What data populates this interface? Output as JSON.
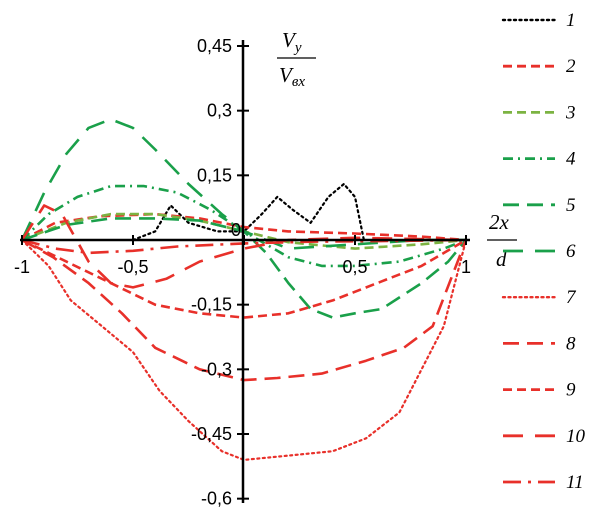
{
  "chart_data": {
    "type": "line",
    "title": "",
    "xlabel": {
      "numerator": "2x",
      "denominator": "d"
    },
    "ylabel": {
      "numerator_main": "V",
      "numerator_sub": "y",
      "denominator_main": "V",
      "denominator_sub": "вх"
    },
    "xlim": [
      -1,
      1
    ],
    "ylim": [
      -0.6,
      0.45
    ],
    "x_ticks": [
      {
        "value": -1,
        "label": "-1"
      },
      {
        "value": -0.5,
        "label": "-0,5"
      },
      {
        "value": 0,
        "label": "0"
      },
      {
        "value": 0.5,
        "label": "0,5"
      },
      {
        "value": 1,
        "label": "1"
      }
    ],
    "y_ticks": [
      {
        "value": 0.45,
        "label": "0,45"
      },
      {
        "value": 0.3,
        "label": "0,3"
      },
      {
        "value": 0.15,
        "label": "0,15"
      },
      {
        "value": -0.15,
        "label": "-0,15"
      },
      {
        "value": -0.3,
        "label": "-0,3"
      },
      {
        "value": -0.45,
        "label": "-0,45"
      },
      {
        "value": -0.6,
        "label": "-0,6"
      }
    ],
    "grid": false,
    "legend_position": "right",
    "series": [
      {
        "name": "1",
        "color": "#000000",
        "dash": "dot",
        "points": [
          [
            -0.5,
            0
          ],
          [
            -0.4,
            0.02
          ],
          [
            -0.33,
            0.08
          ],
          [
            -0.25,
            0.04
          ],
          [
            -0.12,
            0.02
          ],
          [
            0,
            0.02
          ],
          [
            0.08,
            0.06
          ],
          [
            0.15,
            0.1
          ],
          [
            0.22,
            0.07
          ],
          [
            0.3,
            0.04
          ],
          [
            0.38,
            0.1
          ],
          [
            0.45,
            0.13
          ],
          [
            0.5,
            0.1
          ],
          [
            0.54,
            0
          ]
        ]
      },
      {
        "name": "2",
        "color": "#e8302a",
        "dash": "dash",
        "points": [
          [
            -1,
            0
          ],
          [
            -0.85,
            0.04
          ],
          [
            -0.65,
            0.055
          ],
          [
            -0.4,
            0.06
          ],
          [
            -0.2,
            0.05
          ],
          [
            0,
            0.03
          ],
          [
            0.2,
            0.02
          ],
          [
            0.5,
            0.015
          ],
          [
            0.8,
            0.008
          ],
          [
            1,
            0
          ]
        ]
      },
      {
        "name": "3",
        "color": "#7cb342",
        "dash": "dash",
        "points": [
          [
            -1,
            0
          ],
          [
            -0.8,
            0.04
          ],
          [
            -0.6,
            0.06
          ],
          [
            -0.4,
            0.06
          ],
          [
            -0.2,
            0.045
          ],
          [
            0,
            0.02
          ],
          [
            0.2,
            -0.005
          ],
          [
            0.5,
            -0.02
          ],
          [
            0.8,
            -0.01
          ],
          [
            1,
            0
          ]
        ]
      },
      {
        "name": "4",
        "color": "#1aa04a",
        "dash": "dashdot",
        "points": [
          [
            -1,
            0
          ],
          [
            -0.88,
            0.06
          ],
          [
            -0.75,
            0.1
          ],
          [
            -0.6,
            0.125
          ],
          [
            -0.45,
            0.125
          ],
          [
            -0.3,
            0.11
          ],
          [
            -0.15,
            0.07
          ],
          [
            0,
            0.02
          ],
          [
            0.2,
            -0.04
          ],
          [
            0.35,
            -0.06
          ],
          [
            0.5,
            -0.06
          ],
          [
            0.7,
            -0.05
          ],
          [
            0.9,
            -0.02
          ],
          [
            1,
            0
          ]
        ]
      },
      {
        "name": "5",
        "color": "#1aa04a",
        "dash": "longdash",
        "points": [
          [
            -1,
            0
          ],
          [
            -0.8,
            0.035
          ],
          [
            -0.6,
            0.05
          ],
          [
            -0.4,
            0.05
          ],
          [
            -0.2,
            0.045
          ],
          [
            0,
            0.02
          ],
          [
            0.1,
            -0.03
          ],
          [
            0.2,
            -0.1
          ],
          [
            0.3,
            -0.16
          ],
          [
            0.4,
            -0.18
          ],
          [
            0.5,
            -0.17
          ],
          [
            0.62,
            -0.16
          ],
          [
            0.8,
            -0.1
          ],
          [
            0.92,
            -0.05
          ],
          [
            1,
            0
          ]
        ]
      },
      {
        "name": "6",
        "color": "#1aa04a",
        "dash": "longdashsep",
        "points": [
          [
            -1,
            0
          ],
          [
            -0.9,
            0.11
          ],
          [
            -0.8,
            0.2
          ],
          [
            -0.7,
            0.26
          ],
          [
            -0.6,
            0.28
          ],
          [
            -0.5,
            0.26
          ],
          [
            -0.4,
            0.21
          ],
          [
            -0.25,
            0.13
          ],
          [
            -0.1,
            0.06
          ],
          [
            0,
            0.02
          ],
          [
            0.2,
            -0.02
          ],
          [
            0.5,
            -0.01
          ],
          [
            0.8,
            0
          ],
          [
            1,
            0
          ]
        ]
      },
      {
        "name": "7",
        "color": "#e8302a",
        "dash": "dot",
        "points": [
          [
            -1,
            0
          ],
          [
            -0.88,
            -0.06
          ],
          [
            -0.78,
            -0.14
          ],
          [
            -0.64,
            -0.2
          ],
          [
            -0.5,
            -0.26
          ],
          [
            -0.38,
            -0.35
          ],
          [
            -0.25,
            -0.42
          ],
          [
            -0.1,
            -0.49
          ],
          [
            0,
            -0.51
          ],
          [
            0.2,
            -0.5
          ],
          [
            0.4,
            -0.49
          ],
          [
            0.55,
            -0.46
          ],
          [
            0.7,
            -0.4
          ],
          [
            0.8,
            -0.3
          ],
          [
            0.9,
            -0.2
          ],
          [
            1,
            0
          ]
        ]
      },
      {
        "name": "8",
        "color": "#e8302a",
        "dash": "longdash",
        "points": [
          [
            -1,
            0
          ],
          [
            -0.86,
            -0.04
          ],
          [
            -0.7,
            -0.1
          ],
          [
            -0.55,
            -0.17
          ],
          [
            -0.4,
            -0.25
          ],
          [
            -0.2,
            -0.3
          ],
          [
            0,
            -0.325
          ],
          [
            0.15,
            -0.32
          ],
          [
            0.35,
            -0.31
          ],
          [
            0.55,
            -0.28
          ],
          [
            0.72,
            -0.25
          ],
          [
            0.85,
            -0.2
          ],
          [
            1,
            0
          ]
        ]
      },
      {
        "name": "9",
        "color": "#e8302a",
        "dash": "dash",
        "points": [
          [
            -1,
            0
          ],
          [
            -0.8,
            -0.05
          ],
          [
            -0.6,
            -0.1
          ],
          [
            -0.4,
            -0.15
          ],
          [
            -0.2,
            -0.17
          ],
          [
            0,
            -0.18
          ],
          [
            0.2,
            -0.17
          ],
          [
            0.4,
            -0.14
          ],
          [
            0.6,
            -0.1
          ],
          [
            0.8,
            -0.06
          ],
          [
            1,
            0
          ]
        ]
      },
      {
        "name": "10",
        "color": "#e8302a",
        "dash": "longdashsep",
        "points": [
          [
            -1,
            0
          ],
          [
            -0.9,
            0.08
          ],
          [
            -0.82,
            0.06
          ],
          [
            -0.7,
            -0.05
          ],
          [
            -0.6,
            -0.1
          ],
          [
            -0.5,
            -0.11
          ],
          [
            -0.35,
            -0.09
          ],
          [
            -0.2,
            -0.05
          ],
          [
            0,
            -0.02
          ],
          [
            0.2,
            0
          ],
          [
            0.5,
            0.005
          ],
          [
            1,
            0
          ]
        ]
      },
      {
        "name": "11",
        "color": "#e8302a",
        "dash": "longdashdot",
        "points": [
          [
            -1,
            0
          ],
          [
            -0.85,
            -0.02
          ],
          [
            -0.7,
            -0.03
          ],
          [
            -0.5,
            -0.025
          ],
          [
            -0.3,
            -0.015
          ],
          [
            0,
            -0.008
          ],
          [
            0.3,
            -0.004
          ],
          [
            0.7,
            -0.002
          ],
          [
            1,
            0
          ]
        ]
      }
    ]
  }
}
